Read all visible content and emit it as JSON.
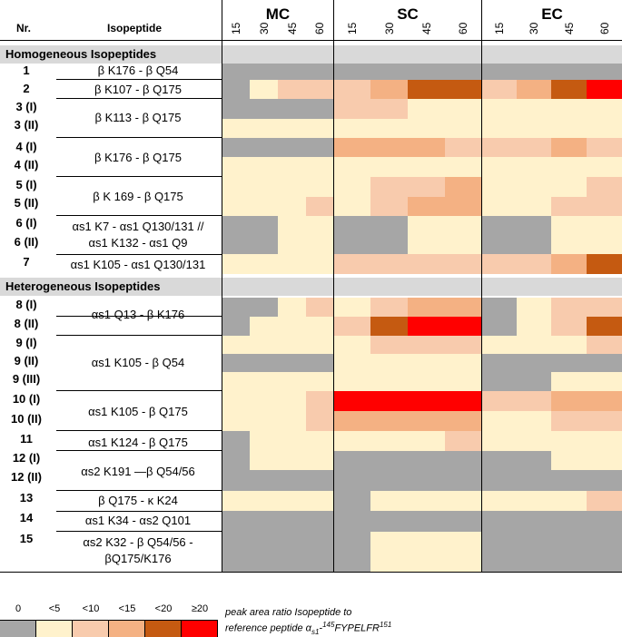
{
  "header": {
    "nr": "Nr.",
    "isopeptide": "Isopeptide",
    "groups": [
      "MC",
      "SC",
      "EC"
    ],
    "times": [
      "15",
      "30",
      "45",
      "60"
    ]
  },
  "sections": {
    "homogeneous": "Homogeneous Isopeptides",
    "heterogeneous": "Heterogeneous Isopeptides"
  },
  "scale_colors": {
    "0": "#a6a6a6",
    "lt5": "#fff2cc",
    "lt10": "#f8cbad",
    "lt15": "#f4b183",
    "lt20": "#c55a11",
    "ge20": "#ff0000"
  },
  "rows": [
    {
      "nr": "1",
      "levels": [
        "0",
        "0",
        "0",
        "0",
        "0",
        "0",
        "0",
        "0",
        "0",
        "0",
        "0",
        "0"
      ]
    },
    {
      "nr": "2",
      "levels": [
        "0",
        "lt5",
        "lt10",
        "lt10",
        "lt10",
        "lt15",
        "lt20",
        "lt20",
        "lt10",
        "lt15",
        "lt20",
        "ge20"
      ]
    },
    {
      "nr": "3 (I)",
      "levels": [
        "0",
        "0",
        "0",
        "0",
        "lt10",
        "lt10",
        "lt5",
        "lt5",
        "lt5",
        "lt5",
        "lt5",
        "lt5"
      ]
    },
    {
      "nr": "3 (II)",
      "levels": [
        "lt5",
        "lt5",
        "lt5",
        "lt5",
        "lt5",
        "lt5",
        "lt5",
        "lt5",
        "lt5",
        "lt5",
        "lt5",
        "lt5"
      ]
    },
    {
      "nr": "4 (I)",
      "levels": [
        "0",
        "0",
        "0",
        "0",
        "lt15",
        "lt15",
        "lt15",
        "lt10",
        "lt10",
        "lt10",
        "lt15",
        "lt10"
      ]
    },
    {
      "nr": "4 (II)",
      "levels": [
        "lt5",
        "lt5",
        "lt5",
        "lt5",
        "lt5",
        "lt5",
        "lt5",
        "lt5",
        "lt5",
        "lt5",
        "lt5",
        "lt5"
      ]
    },
    {
      "nr": "5 (I)",
      "levels": [
        "lt5",
        "lt5",
        "lt5",
        "lt5",
        "lt5",
        "lt10",
        "lt10",
        "lt15",
        "lt5",
        "lt5",
        "lt5",
        "lt10"
      ]
    },
    {
      "nr": "5 (II)",
      "levels": [
        "lt5",
        "lt5",
        "lt5",
        "lt10",
        "lt5",
        "lt10",
        "lt15",
        "lt15",
        "lt5",
        "lt5",
        "lt10",
        "lt10"
      ]
    },
    {
      "nr": "6 (I)",
      "levels": [
        "0",
        "0",
        "lt5",
        "lt5",
        "0",
        "0",
        "lt5",
        "lt5",
        "0",
        "0",
        "lt5",
        "lt5"
      ]
    },
    {
      "nr": "6 (II)",
      "levels": [
        "0",
        "0",
        "lt5",
        "lt5",
        "0",
        "0",
        "lt5",
        "lt5",
        "0",
        "0",
        "lt5",
        "lt5"
      ]
    },
    {
      "nr": "7",
      "levels": [
        "lt5",
        "lt5",
        "lt5",
        "lt5",
        "lt10",
        "lt10",
        "lt10",
        "lt10",
        "lt10",
        "lt10",
        "lt15",
        "lt20"
      ]
    },
    {
      "nr": "8 (I)",
      "levels": [
        "0",
        "0",
        "lt5",
        "lt10",
        "lt5",
        "lt10",
        "lt15",
        "lt15",
        "0",
        "lt5",
        "lt10",
        "lt10"
      ]
    },
    {
      "nr": "8 (II)",
      "levels": [
        "0",
        "lt5",
        "lt5",
        "lt5",
        "lt10",
        "lt20",
        "ge20",
        "ge20",
        "0",
        "lt5",
        "lt10",
        "lt20"
      ]
    },
    {
      "nr": "9 (I)",
      "levels": [
        "lt5",
        "lt5",
        "lt5",
        "lt5",
        "lt5",
        "lt10",
        "lt10",
        "lt10",
        "lt5",
        "lt5",
        "lt5",
        "lt10"
      ]
    },
    {
      "nr": "9 (II)",
      "levels": [
        "0",
        "0",
        "0",
        "0",
        "lt5",
        "lt5",
        "lt5",
        "lt5",
        "0",
        "0",
        "0",
        "0"
      ]
    },
    {
      "nr": "9 (III)",
      "levels": [
        "lt5",
        "lt5",
        "lt5",
        "lt5",
        "lt5",
        "lt5",
        "lt5",
        "lt5",
        "0",
        "0",
        "lt5",
        "lt5"
      ]
    },
    {
      "nr": "10 (I)",
      "levels": [
        "lt5",
        "lt5",
        "lt5",
        "lt10",
        "ge20",
        "ge20",
        "ge20",
        "ge20",
        "lt10",
        "lt10",
        "lt15",
        "lt15"
      ]
    },
    {
      "nr": "10 (II)",
      "levels": [
        "lt5",
        "lt5",
        "lt5",
        "lt10",
        "lt15",
        "lt15",
        "lt15",
        "lt15",
        "lt5",
        "lt5",
        "lt10",
        "lt10"
      ]
    },
    {
      "nr": "11",
      "levels": [
        "0",
        "lt5",
        "lt5",
        "lt5",
        "lt5",
        "lt5",
        "lt5",
        "lt10",
        "lt5",
        "lt5",
        "lt5",
        "lt5"
      ]
    },
    {
      "nr": "12 (I)",
      "levels": [
        "0",
        "lt5",
        "lt5",
        "lt5",
        "0",
        "0",
        "0",
        "0",
        "0",
        "0",
        "lt5",
        "lt5"
      ]
    },
    {
      "nr": "12 (II)",
      "levels": [
        "0",
        "0",
        "0",
        "0",
        "0",
        "0",
        "0",
        "0",
        "0",
        "0",
        "0",
        "0"
      ]
    },
    {
      "nr": "13",
      "levels": [
        "lt5",
        "lt5",
        "lt5",
        "lt5",
        "0",
        "lt5",
        "lt5",
        "lt5",
        "lt5",
        "lt5",
        "lt5",
        "lt10"
      ]
    },
    {
      "nr": "14",
      "levels": [
        "0",
        "0",
        "0",
        "0",
        "0",
        "0",
        "0",
        "0",
        "0",
        "0",
        "0",
        "0"
      ]
    },
    {
      "nr": "15",
      "levels": [
        "0",
        "0",
        "0",
        "0",
        "0",
        "lt5",
        "lt5",
        "lt5",
        "0",
        "0",
        "0",
        "0"
      ]
    }
  ],
  "peptides": {
    "p1": "β K176 - β Q54",
    "p2": "β K107 - β Q175",
    "p3": "β K113 - β Q175",
    "p4": "β K176 - β Q175",
    "p5": "β K 169 - β Q175",
    "p6a": "αs1 K7 - αs1 Q130/131 //",
    "p6b": "αs1 K132 - αs1 Q9",
    "p7": "αs1 K105 - αs1 Q130/131",
    "p8": "αs1 Q13 - β K176",
    "p9": "αs1 K105 - β Q54",
    "p10": "αs1 K105 - β Q175",
    "p11": "αs1 K124 - β Q175",
    "p12": "αs2 K191 —β Q54/56",
    "p13": "β Q175 - κ K24",
    "p14": "αs1 K34 - αs2 Q101",
    "p15a": "αs2 K32 - β Q54/56 -",
    "p15b": "βQ175/K176"
  },
  "legend": {
    "labels": [
      "0",
      "<5",
      "<10",
      "<15",
      "<20",
      "≥20"
    ],
    "note_line1": "peak area ratio Isopeptide to",
    "note_line2": "reference peptide αs1-145FYPELFR151"
  }
}
